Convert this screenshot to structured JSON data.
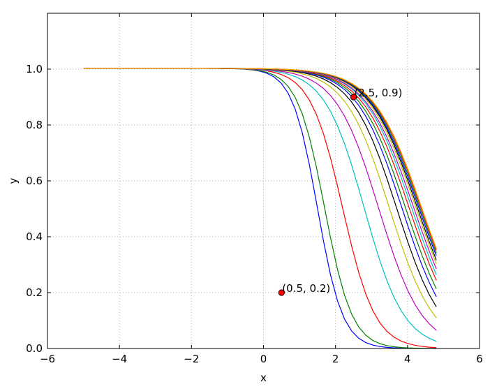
{
  "chart_data": {
    "type": "line",
    "title": "",
    "xlabel": "x",
    "ylabel": "y",
    "xlim": [
      -6,
      6
    ],
    "ylim": [
      0,
      1.2
    ],
    "xticks": [
      -6,
      -4,
      -2,
      0,
      2,
      4,
      6
    ],
    "xtick_labels": [
      "−6",
      "−4",
      "−2",
      "0",
      "2",
      "4",
      "6"
    ],
    "yticks": [
      0.0,
      0.2,
      0.4,
      0.6,
      0.8,
      1.0
    ],
    "ytick_labels": [
      "0.0",
      "0.2",
      "0.4",
      "0.6",
      "0.8",
      "1.0"
    ],
    "grid": true,
    "x_range": [
      -5,
      4.8
    ],
    "series": [
      {
        "color": "#0000ff",
        "midpoint": 1.5,
        "scale": 0.35
      },
      {
        "color": "#008000",
        "midpoint": 1.7,
        "scale": 0.38
      },
      {
        "color": "#ff0000",
        "midpoint": 2.2,
        "scale": 0.45
      },
      {
        "color": "#00bfbf",
        "midpoint": 2.8,
        "scale": 0.55
      },
      {
        "color": "#bf00bf",
        "midpoint": 3.2,
        "scale": 0.6
      },
      {
        "color": "#bfbf00",
        "midpoint": 3.5,
        "scale": 0.62
      },
      {
        "color": "#000000",
        "midpoint": 3.7,
        "scale": 0.63
      },
      {
        "color": "#0000ff",
        "midpoint": 3.85,
        "scale": 0.64
      },
      {
        "color": "#008000",
        "midpoint": 3.95,
        "scale": 0.65
      },
      {
        "color": "#ff0000",
        "midpoint": 4.05,
        "scale": 0.66
      },
      {
        "color": "#00bfbf",
        "midpoint": 4.12,
        "scale": 0.66
      },
      {
        "color": "#bf00bf",
        "midpoint": 4.18,
        "scale": 0.67
      },
      {
        "color": "#bfbf00",
        "midpoint": 4.24,
        "scale": 0.67
      },
      {
        "color": "#000000",
        "midpoint": 4.28,
        "scale": 0.67
      },
      {
        "color": "#0000ff",
        "midpoint": 4.32,
        "scale": 0.68
      },
      {
        "color": "#008000",
        "midpoint": 4.35,
        "scale": 0.68
      },
      {
        "color": "#ff0000",
        "midpoint": 4.38,
        "scale": 0.68
      },
      {
        "color": "#ffa500",
        "midpoint": 4.4,
        "scale": 0.68
      }
    ],
    "points": [
      {
        "x": 2.5,
        "y": 0.9,
        "label": "(2.5, 0.9)"
      },
      {
        "x": 0.5,
        "y": 0.2,
        "label": "(0.5, 0.2)"
      }
    ]
  }
}
